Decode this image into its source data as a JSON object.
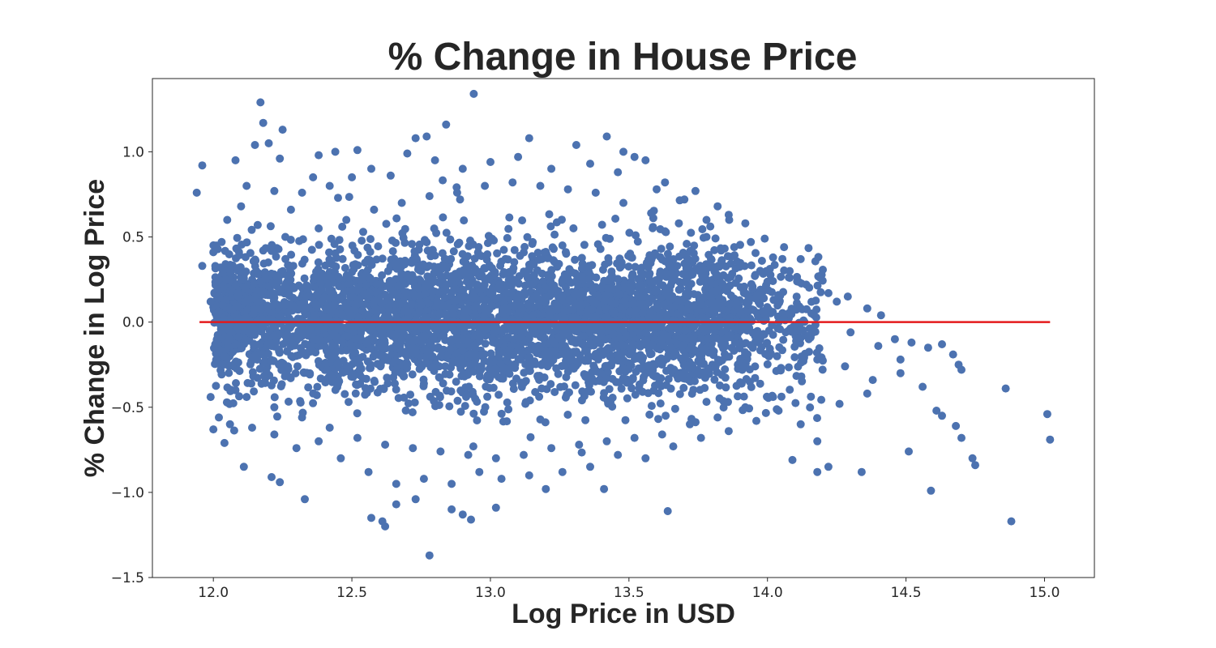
{
  "chart_data": {
    "type": "scatter",
    "title": "% Change in House Price",
    "xlabel": "Log Price in USD",
    "ylabel": "% Change in Log Price",
    "xlim": [
      11.78,
      15.18
    ],
    "ylim": [
      -1.5,
      1.43
    ],
    "x_ticks": [
      12.0,
      12.5,
      13.0,
      13.5,
      14.0,
      14.5,
      15.0
    ],
    "x_tick_labels": [
      "12.0",
      "12.5",
      "13.0",
      "13.5",
      "14.0",
      "14.5",
      "15.0"
    ],
    "y_ticks": [
      -1.5,
      -1.0,
      -0.5,
      0.0,
      0.5,
      1.0
    ],
    "y_tick_labels": [
      "−1.5",
      "−1.0",
      "−0.5",
      "0.0",
      "0.5",
      "1.0"
    ],
    "grid": false,
    "point_color": "#4c72b0",
    "reference_line": {
      "y": 0.0,
      "x_range": [
        11.95,
        15.02
      ],
      "color": "#e41a1c"
    },
    "points": [
      [
        11.94,
        0.76
      ],
      [
        11.96,
        0.92
      ],
      [
        11.96,
        0.33
      ],
      [
        12.08,
        0.95
      ],
      [
        12.17,
        1.29
      ],
      [
        12.18,
        1.17
      ],
      [
        12.15,
        1.04
      ],
      [
        12.2,
        1.05
      ],
      [
        12.25,
        1.13
      ],
      [
        12.24,
        0.96
      ],
      [
        12.38,
        0.98
      ],
      [
        12.44,
        1.0
      ],
      [
        12.52,
        1.01
      ],
      [
        12.73,
        1.08
      ],
      [
        12.77,
        1.09
      ],
      [
        12.84,
        1.16
      ],
      [
        12.94,
        1.34
      ],
      [
        13.14,
        1.08
      ],
      [
        13.31,
        1.04
      ],
      [
        13.42,
        1.09
      ],
      [
        13.48,
        1.0
      ],
      [
        13.52,
        0.97
      ],
      [
        13.56,
        0.95
      ],
      [
        13.63,
        0.82
      ],
      [
        13.74,
        0.77
      ],
      [
        13.82,
        0.68
      ],
      [
        13.92,
        0.58
      ],
      [
        13.99,
        0.49
      ],
      [
        14.06,
        0.44
      ],
      [
        14.12,
        0.37
      ],
      [
        14.19,
        0.26
      ],
      [
        14.22,
        0.17
      ],
      [
        14.29,
        0.15
      ],
      [
        14.36,
        0.08
      ],
      [
        14.41,
        0.04
      ],
      [
        14.46,
        -0.1
      ],
      [
        14.52,
        -0.12
      ],
      [
        14.58,
        -0.15
      ],
      [
        14.63,
        -0.13
      ],
      [
        14.67,
        -0.19
      ],
      [
        14.69,
        -0.25
      ],
      [
        14.7,
        -0.28
      ],
      [
        14.61,
        -0.52
      ],
      [
        14.63,
        -0.55
      ],
      [
        14.68,
        -0.61
      ],
      [
        14.7,
        -0.68
      ],
      [
        14.74,
        -0.8
      ],
      [
        14.75,
        -0.84
      ],
      [
        14.59,
        -0.99
      ],
      [
        14.51,
        -0.76
      ],
      [
        14.86,
        -0.39
      ],
      [
        14.88,
        -1.17
      ],
      [
        15.01,
        -0.54
      ],
      [
        15.02,
        -0.69
      ],
      [
        14.34,
        -0.88
      ],
      [
        14.22,
        -0.85
      ],
      [
        14.18,
        -0.88
      ],
      [
        14.09,
        -0.81
      ],
      [
        13.64,
        -1.11
      ],
      [
        13.41,
        -0.98
      ],
      [
        13.2,
        -0.98
      ],
      [
        13.02,
        -1.09
      ],
      [
        12.93,
        -1.16
      ],
      [
        12.9,
        -1.13
      ],
      [
        12.86,
        -1.1
      ],
      [
        12.78,
        -1.37
      ],
      [
        12.62,
        -1.2
      ],
      [
        12.61,
        -1.17
      ],
      [
        12.57,
        -1.15
      ],
      [
        12.66,
        -1.07
      ],
      [
        12.73,
        -1.04
      ],
      [
        12.33,
        -1.04
      ],
      [
        12.24,
        -0.94
      ],
      [
        12.21,
        -0.91
      ],
      [
        12.11,
        -0.85
      ],
      [
        12.04,
        -0.71
      ],
      [
        12.0,
        -0.63
      ],
      [
        11.99,
        -0.44
      ],
      [
        12.02,
        -0.56
      ],
      [
        12.06,
        -0.6
      ],
      [
        12.0,
        0.41
      ],
      [
        12.03,
        0.47
      ],
      [
        12.05,
        0.6
      ],
      [
        12.1,
        0.68
      ],
      [
        12.12,
        0.8
      ],
      [
        12.16,
        0.57
      ],
      [
        12.22,
        0.77
      ],
      [
        12.28,
        0.66
      ],
      [
        12.32,
        0.76
      ],
      [
        12.36,
        0.85
      ],
      [
        12.42,
        0.8
      ],
      [
        12.45,
        0.73
      ],
      [
        12.5,
        0.85
      ],
      [
        12.57,
        0.9
      ],
      [
        12.64,
        0.86
      ],
      [
        12.7,
        0.99
      ],
      [
        12.8,
        0.95
      ],
      [
        12.9,
        0.9
      ],
      [
        13.0,
        0.94
      ],
      [
        13.1,
        0.97
      ],
      [
        13.22,
        0.9
      ],
      [
        13.36,
        0.93
      ],
      [
        13.46,
        0.88
      ],
      [
        13.6,
        0.78
      ],
      [
        13.7,
        0.72
      ],
      [
        13.78,
        0.6
      ],
      [
        13.86,
        0.63
      ],
      [
        13.94,
        0.47
      ],
      [
        14.02,
        0.38
      ],
      [
        14.08,
        0.3
      ],
      [
        14.14,
        0.22
      ],
      [
        14.25,
        0.12
      ],
      [
        14.3,
        -0.06
      ],
      [
        14.4,
        -0.14
      ],
      [
        14.48,
        -0.3
      ],
      [
        14.56,
        -0.38
      ],
      [
        14.36,
        -0.42
      ],
      [
        14.26,
        -0.48
      ],
      [
        14.12,
        -0.6
      ],
      [
        14.04,
        -0.52
      ],
      [
        13.96,
        -0.58
      ],
      [
        13.86,
        -0.64
      ],
      [
        13.76,
        -0.68
      ],
      [
        13.66,
        -0.73
      ],
      [
        13.56,
        -0.8
      ],
      [
        13.46,
        -0.78
      ],
      [
        13.36,
        -0.85
      ],
      [
        13.26,
        -0.88
      ],
      [
        13.14,
        -0.9
      ],
      [
        13.04,
        -0.92
      ],
      [
        12.96,
        -0.88
      ],
      [
        12.86,
        -0.95
      ],
      [
        12.76,
        -0.92
      ],
      [
        12.66,
        -0.95
      ],
      [
        12.56,
        -0.88
      ],
      [
        12.46,
        -0.8
      ],
      [
        12.38,
        -0.7
      ],
      [
        12.3,
        -0.74
      ],
      [
        12.22,
        -0.66
      ],
      [
        12.14,
        -0.62
      ],
      [
        12.08,
        -0.4
      ],
      [
        12.04,
        -0.2
      ],
      [
        11.99,
        0.12
      ],
      [
        12.02,
        0.25
      ],
      [
        12.06,
        -0.1
      ],
      [
        12.18,
        0.42
      ],
      [
        12.26,
        0.5
      ],
      [
        12.38,
        0.55
      ],
      [
        12.48,
        0.6
      ],
      [
        12.58,
        0.66
      ],
      [
        12.68,
        0.7
      ],
      [
        12.78,
        0.74
      ],
      [
        12.88,
        0.76
      ],
      [
        12.98,
        0.8
      ],
      [
        13.08,
        0.82
      ],
      [
        13.18,
        0.8
      ],
      [
        13.28,
        0.78
      ],
      [
        13.38,
        0.76
      ],
      [
        13.48,
        0.7
      ],
      [
        13.58,
        0.64
      ],
      [
        13.68,
        0.58
      ],
      [
        13.78,
        0.5
      ],
      [
        13.88,
        0.44
      ],
      [
        13.98,
        0.36
      ],
      [
        14.08,
        0.26
      ],
      [
        14.18,
        -0.22
      ],
      [
        14.28,
        -0.26
      ],
      [
        14.38,
        -0.34
      ],
      [
        14.48,
        -0.22
      ],
      [
        14.18,
        -0.7
      ],
      [
        14.02,
        -0.44
      ],
      [
        13.92,
        -0.5
      ],
      [
        13.82,
        -0.56
      ],
      [
        13.72,
        -0.6
      ],
      [
        13.62,
        -0.66
      ],
      [
        13.52,
        -0.68
      ],
      [
        13.42,
        -0.7
      ],
      [
        13.32,
        -0.72
      ],
      [
        13.22,
        -0.74
      ],
      [
        13.12,
        -0.78
      ],
      [
        13.02,
        -0.8
      ],
      [
        12.92,
        -0.78
      ],
      [
        12.82,
        -0.76
      ],
      [
        12.72,
        -0.74
      ],
      [
        12.62,
        -0.72
      ],
      [
        12.52,
        -0.68
      ],
      [
        12.42,
        -0.62
      ],
      [
        12.32,
        -0.56
      ],
      [
        12.22,
        -0.5
      ],
      [
        12.12,
        -0.44
      ]
    ],
    "dense_clusters": [
      {
        "cx": 13.1,
        "cy": 0.0,
        "sx": 0.48,
        "sy": 0.22,
        "n": 2600
      },
      {
        "cx": 12.4,
        "cy": 0.02,
        "sx": 0.25,
        "sy": 0.18,
        "n": 900
      },
      {
        "cx": 13.7,
        "cy": 0.0,
        "sx": 0.2,
        "sy": 0.2,
        "n": 700
      },
      {
        "cx": 12.1,
        "cy": 0.05,
        "sx": 0.08,
        "sy": 0.16,
        "n": 300
      }
    ]
  }
}
